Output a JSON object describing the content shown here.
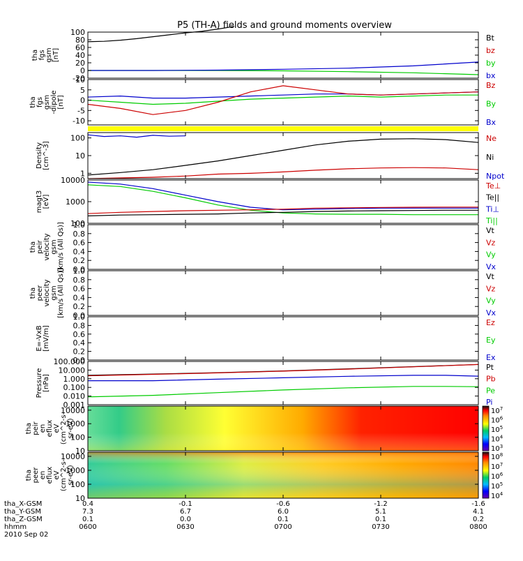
{
  "title": "P5 (TH-A) fields and ground moments overview",
  "date_label": "2010 Sep 02",
  "colors": {
    "black": "#000000",
    "red": "#cc0000",
    "green": "#00cc00",
    "blue": "#0000cc",
    "yellow": "#ffff00",
    "brown": "#800000"
  },
  "chart_data": [
    {
      "type": "line",
      "panel": "fgs-total",
      "ylabel": [
        "tha",
        "fgs",
        "gsm",
        "[nT]"
      ],
      "ylim": [
        -20,
        100
      ],
      "yticks": [
        "100",
        "80",
        "60",
        "40",
        "20",
        "0",
        "-20"
      ],
      "legend": [
        {
          "name": "Bt",
          "color": "#000000"
        },
        {
          "name": "bz",
          "color": "#cc0000"
        },
        {
          "name": "by",
          "color": "#00cc00"
        },
        {
          "name": "bx",
          "color": "#0000cc"
        }
      ],
      "series": [
        {
          "name": "Bt",
          "color": "#000000",
          "x": [
            0,
            5,
            10,
            15,
            20,
            25,
            30,
            35,
            40,
            45
          ],
          "y": [
            75,
            76,
            79,
            83,
            88,
            93,
            98,
            102,
            108,
            115
          ]
        },
        {
          "name": "by",
          "color": "#00cc00",
          "x": [
            0,
            20,
            40,
            60,
            80,
            100,
            120
          ],
          "y": [
            0,
            0,
            0,
            -1,
            -3,
            -6,
            -11
          ]
        },
        {
          "name": "bx",
          "color": "#0000cc",
          "x": [
            0,
            20,
            40,
            60,
            80,
            100,
            120
          ],
          "y": [
            0,
            0,
            1,
            3,
            6,
            12,
            22
          ]
        }
      ]
    },
    {
      "type": "line",
      "panel": "fgs-components",
      "ylabel": [
        "tha",
        "fgs",
        "gsm",
        "-dipole",
        "[nT]"
      ],
      "ylim": [
        -12,
        10
      ],
      "yticks": [
        "10",
        "5",
        "0",
        "-5",
        "-10"
      ],
      "legend": [
        {
          "name": "Bz",
          "color": "#cc0000"
        },
        {
          "name": "By",
          "color": "#00cc00"
        },
        {
          "name": "Bx",
          "color": "#0000cc"
        }
      ],
      "series": [
        {
          "name": "Bx",
          "color": "#0000cc",
          "x": [
            0,
            10,
            20,
            30,
            40,
            50,
            60,
            70,
            80,
            90,
            100,
            110,
            120
          ],
          "y": [
            1.5,
            2,
            1,
            1,
            1.5,
            2,
            2.5,
            3,
            3,
            2.5,
            3,
            3.5,
            4
          ]
        },
        {
          "name": "By",
          "color": "#00cc00",
          "x": [
            0,
            10,
            20,
            30,
            40,
            50,
            60,
            70,
            80,
            90,
            100,
            110,
            120
          ],
          "y": [
            0,
            -1,
            -2,
            -1.5,
            -0.5,
            0.5,
            1,
            1.5,
            2,
            1.5,
            2,
            2.5,
            2.5
          ]
        },
        {
          "name": "Bz",
          "color": "#cc0000",
          "x": [
            0,
            10,
            20,
            30,
            40,
            50,
            60,
            70,
            80,
            90,
            100,
            110,
            120
          ],
          "y": [
            -2,
            -4,
            -7,
            -5,
            -1,
            4,
            7,
            5,
            3,
            2.5,
            3,
            3.5,
            4
          ]
        }
      ]
    },
    {
      "type": "line",
      "panel": "density",
      "ylabel": [
        "Density",
        "[cm^-3]"
      ],
      "scale": "log",
      "ylim": [
        0.5,
        200
      ],
      "yticks": [
        "100",
        "10",
        "1"
      ],
      "legend": [
        {
          "name": "Ne",
          "color": "#cc0000"
        },
        {
          "name": "Ni",
          "color": "#000000"
        },
        {
          "name": "Npot",
          "color": "#0000cc"
        }
      ],
      "series": [
        {
          "name": "Ni",
          "color": "#000000",
          "x": [
            0,
            10,
            20,
            30,
            40,
            50,
            60,
            70,
            80,
            90,
            100,
            110,
            120
          ],
          "y": [
            0.8,
            1.1,
            1.6,
            2.8,
            5,
            10,
            20,
            40,
            65,
            85,
            90,
            80,
            55
          ]
        },
        {
          "name": "Ne",
          "color": "#cc0000",
          "x": [
            0,
            10,
            20,
            30,
            40,
            50,
            60,
            70,
            80,
            90,
            100,
            110,
            120
          ],
          "y": [
            0.5,
            0.55,
            0.6,
            0.7,
            0.9,
            1,
            1.2,
            1.5,
            1.8,
            2,
            2.1,
            2,
            1.6
          ]
        },
        {
          "name": "Npot",
          "color": "#0000cc",
          "x": [
            0,
            5,
            10,
            15,
            20,
            25,
            30
          ],
          "y": [
            150,
            120,
            130,
            110,
            140,
            125,
            130
          ]
        }
      ]
    },
    {
      "type": "line",
      "panel": "temperature",
      "ylabel": [
        "magt3",
        "[eV]"
      ],
      "scale": "log",
      "ylim": [
        100,
        10000
      ],
      "yticks": [
        "10000",
        "1000",
        "100"
      ],
      "legend": [
        {
          "name": "Te⊥",
          "color": "#cc0000"
        },
        {
          "name": "Te||",
          "color": "#000000"
        },
        {
          "name": "Ti⊥",
          "color": "#0000cc"
        },
        {
          "name": "Ti||",
          "color": "#00cc00"
        }
      ],
      "series": [
        {
          "name": "Ti⊥",
          "color": "#0000cc",
          "x": [
            0,
            10,
            20,
            30,
            40,
            50,
            60,
            70,
            80,
            90,
            100,
            110,
            120
          ],
          "y": [
            8000,
            6500,
            4000,
            2000,
            1000,
            550,
            420,
            450,
            480,
            500,
            500,
            500,
            500
          ]
        },
        {
          "name": "Ti||",
          "color": "#00cc00",
          "x": [
            0,
            10,
            20,
            30,
            40,
            50,
            60,
            70,
            80,
            90,
            100,
            110,
            120
          ],
          "y": [
            6000,
            5000,
            3000,
            1500,
            700,
            400,
            300,
            270,
            260,
            260,
            250,
            250,
            250
          ]
        },
        {
          "name": "Te⊥",
          "color": "#cc0000",
          "x": [
            0,
            10,
            20,
            30,
            40,
            50,
            60,
            70,
            80,
            90,
            100,
            110,
            120
          ],
          "y": [
            280,
            320,
            350,
            380,
            400,
            420,
            450,
            500,
            520,
            540,
            550,
            560,
            560
          ]
        },
        {
          "name": "Te||",
          "color": "#000000",
          "x": [
            0,
            10,
            20,
            30,
            40,
            50,
            60,
            70,
            80,
            90,
            100,
            110,
            120
          ],
          "y": [
            220,
            240,
            250,
            260,
            270,
            300,
            320,
            350,
            370,
            380,
            390,
            400,
            400
          ]
        }
      ]
    },
    {
      "type": "line",
      "panel": "peir-velocity",
      "ylabel": [
        "tha",
        "peir",
        "velocity",
        "gsm",
        "[km/s (All Qs)]"
      ],
      "ylim": [
        0,
        1
      ],
      "yticks": [
        "1.0",
        "0.8",
        "0.6",
        "0.4",
        "0.2",
        "0.0"
      ],
      "legend": [
        {
          "name": "Vt",
          "color": "#000000"
        },
        {
          "name": "Vz",
          "color": "#cc0000"
        },
        {
          "name": "Vy",
          "color": "#00cc00"
        },
        {
          "name": "Vx",
          "color": "#0000cc"
        }
      ],
      "series": []
    },
    {
      "type": "line",
      "panel": "peer-velocity",
      "ylabel": [
        "tha",
        "peer",
        "velocity",
        "gsm",
        "[km/s (All Qs)]"
      ],
      "ylim": [
        0,
        1
      ],
      "yticks": [
        "1.0",
        "0.8",
        "0.6",
        "0.4",
        "0.2",
        "0.0"
      ],
      "legend": [
        {
          "name": "Vt",
          "color": "#000000"
        },
        {
          "name": "Vz",
          "color": "#cc0000"
        },
        {
          "name": "Vy",
          "color": "#00cc00"
        },
        {
          "name": "Vx",
          "color": "#0000cc"
        }
      ],
      "series": []
    },
    {
      "type": "line",
      "panel": "e-field",
      "ylabel": [
        "E=-VxB",
        "[mV/m]"
      ],
      "ylim": [
        0,
        1
      ],
      "yticks": [
        "1.0",
        "0.8",
        "0.6",
        "0.4",
        "0.2",
        "0.0"
      ],
      "legend": [
        {
          "name": "Ez",
          "color": "#cc0000"
        },
        {
          "name": "Ey",
          "color": "#00cc00"
        },
        {
          "name": "Ex",
          "color": "#0000cc"
        }
      ],
      "series": []
    },
    {
      "type": "line",
      "panel": "pressure",
      "ylabel": [
        "Pressure",
        "[nPa]"
      ],
      "scale": "log",
      "ylim": [
        0.001,
        100
      ],
      "yticks": [
        "100.000",
        "10.000",
        "1.000",
        "0.100",
        "0.010",
        "0.001"
      ],
      "legend": [
        {
          "name": "Pt",
          "color": "#000000"
        },
        {
          "name": "Pb",
          "color": "#cc0000"
        },
        {
          "name": "Pe",
          "color": "#00cc00"
        },
        {
          "name": "Pi",
          "color": "#0000cc"
        }
      ],
      "series": [
        {
          "name": "Pt",
          "color": "#000000",
          "x": [
            0,
            20,
            40,
            60,
            80,
            100,
            120
          ],
          "y": [
            2.5,
            3.5,
            5,
            8,
            14,
            25,
            45
          ]
        },
        {
          "name": "Pb",
          "color": "#cc0000",
          "x": [
            0,
            20,
            40,
            60,
            80,
            100,
            120
          ],
          "y": [
            2.2,
            3.2,
            4.8,
            7.5,
            13,
            24,
            44
          ]
        },
        {
          "name": "Pi",
          "color": "#0000cc",
          "x": [
            0,
            20,
            40,
            60,
            80,
            100,
            110,
            120
          ],
          "y": [
            0.6,
            0.6,
            0.9,
            1.3,
            1.9,
            2.5,
            2.5,
            2
          ]
        },
        {
          "name": "Pe",
          "color": "#00cc00",
          "x": [
            0,
            20,
            40,
            60,
            80,
            100,
            110,
            120
          ],
          "y": [
            0.008,
            0.012,
            0.025,
            0.05,
            0.09,
            0.13,
            0.13,
            0.12
          ]
        }
      ]
    },
    {
      "type": "heatmap",
      "panel": "peir-spectrogram",
      "ylabel": [
        "tha",
        "peir",
        "en",
        "eflux",
        "eV",
        "(cm^2-s-",
        "sr-eV)"
      ],
      "scale": "log",
      "ylim": [
        10,
        20000
      ],
      "yticks": [
        "10000",
        "1000",
        "100",
        "10"
      ],
      "colorbar": {
        "labels": [
          "10^7",
          "10^6",
          "10^5",
          "10^4",
          "10^3"
        ]
      }
    },
    {
      "type": "heatmap",
      "panel": "peer-spectrogram",
      "ylabel": [
        "tha",
        "peer",
        "en",
        "eflux",
        "eV",
        "(cm^2-s-",
        "sr-eV)"
      ],
      "scale": "log",
      "ylim": [
        10,
        20000
      ],
      "yticks": [
        "10000",
        "1000",
        "100",
        "10"
      ],
      "colorbar": {
        "labels": [
          "10^8",
          "10^7",
          "10^6",
          "10^5",
          "10^4"
        ]
      }
    }
  ],
  "x_axis": {
    "ticks": [
      {
        "x": 0,
        "X_GSM": "0.4",
        "Y_GSM": "7.3",
        "Z_GSM": "0.1",
        "hhmm": "0600"
      },
      {
        "x": 30,
        "X_GSM": "-0.1",
        "Y_GSM": "6.7",
        "Z_GSM": "0.0",
        "hhmm": "0630"
      },
      {
        "x": 60,
        "X_GSM": "-0.6",
        "Y_GSM": "6.0",
        "Z_GSM": "0.1",
        "hhmm": "0700"
      },
      {
        "x": 90,
        "X_GSM": "-1.2",
        "Y_GSM": "5.1",
        "Z_GSM": "0.1",
        "hhmm": "0730"
      },
      {
        "x": 120,
        "X_GSM": "-1.6",
        "Y_GSM": "4.1",
        "Z_GSM": "0.2",
        "hhmm": "0800"
      }
    ],
    "row_labels": [
      "tha_X-GSM",
      "tha_Y-GSM",
      "tha_Z-GSM",
      "hhmm"
    ]
  }
}
